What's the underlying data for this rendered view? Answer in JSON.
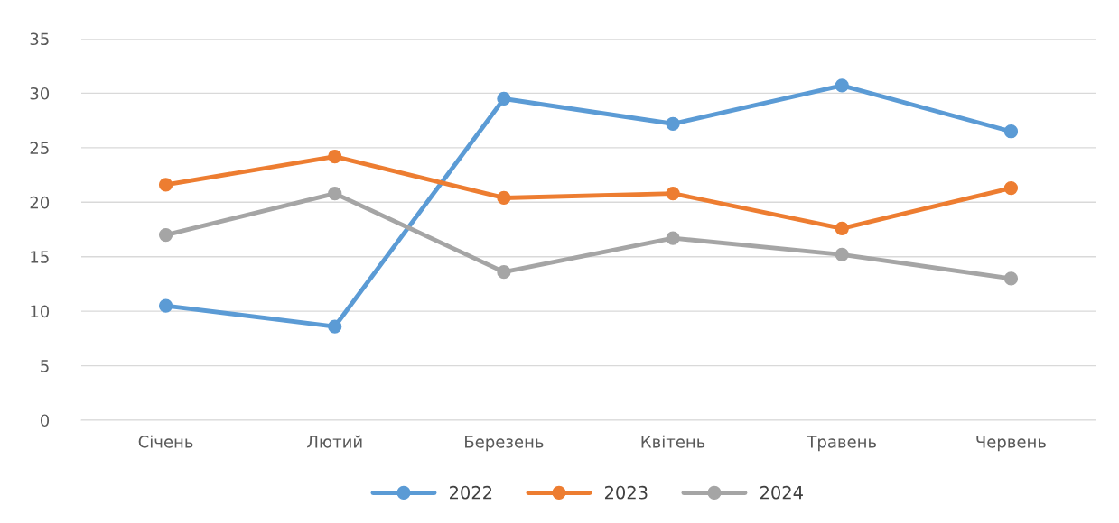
{
  "chart_data": {
    "type": "line",
    "categories": [
      "Січень",
      "Лютий",
      "Березень",
      "Квітень",
      "Травень",
      "Червень"
    ],
    "series": [
      {
        "name": "2022",
        "color": "#5b9bd5",
        "values": [
          10.5,
          8.6,
          29.5,
          27.2,
          30.7,
          26.5
        ]
      },
      {
        "name": "2023",
        "color": "#ed7d31",
        "values": [
          21.6,
          24.2,
          20.4,
          20.8,
          17.6,
          21.3
        ]
      },
      {
        "name": "2024",
        "color": "#a5a5a5",
        "values": [
          17.0,
          20.8,
          13.6,
          16.7,
          15.2,
          13.0
        ]
      }
    ],
    "ylim": [
      0,
      35
    ],
    "yticks": [
      0,
      5,
      10,
      15,
      20,
      25,
      30,
      35
    ],
    "grid": "y",
    "legend": "bottom",
    "marker": "circle",
    "line_style": "solid"
  }
}
